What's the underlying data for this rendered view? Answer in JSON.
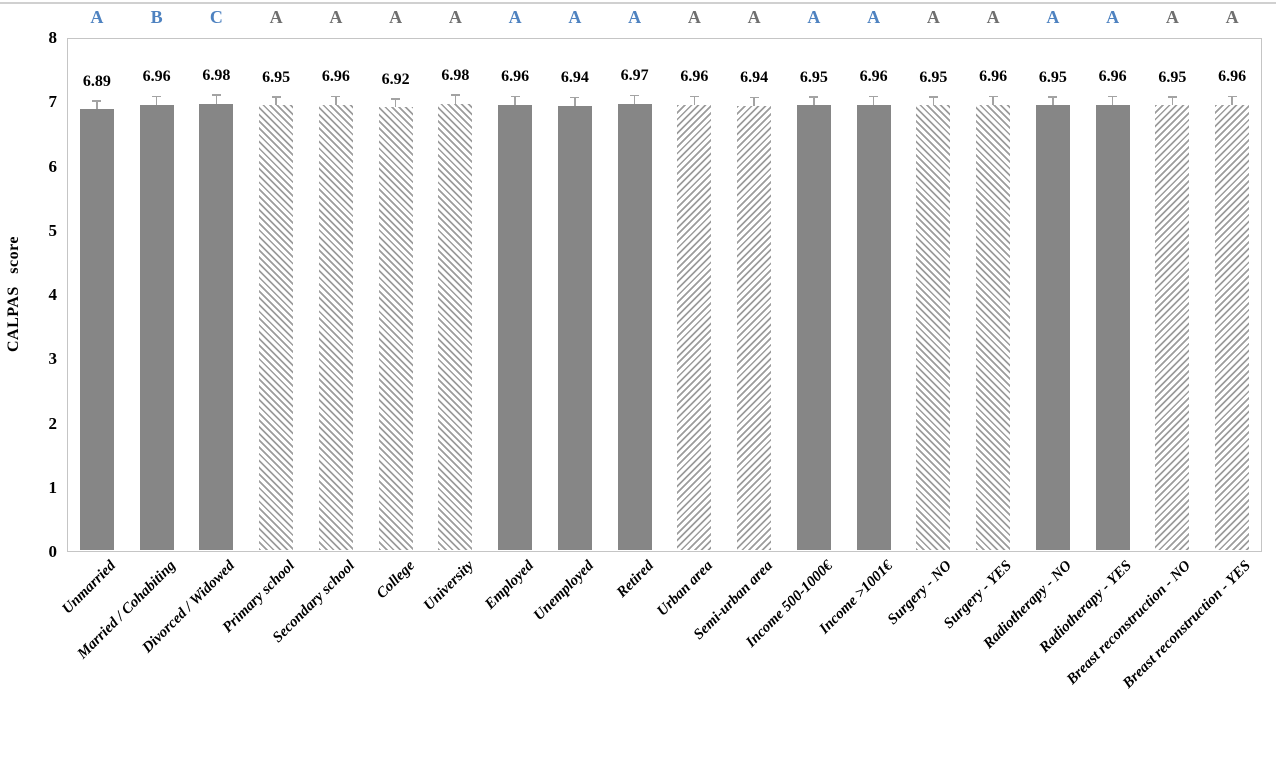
{
  "chart_data": {
    "type": "bar",
    "title": "",
    "xlabel": "",
    "ylabel": "CALPAS score",
    "ylim": [
      0,
      8
    ],
    "yticks": [
      0,
      1,
      2,
      3,
      4,
      5,
      6,
      7,
      8
    ],
    "grid": false,
    "legend": "none",
    "categories": [
      "Unmarried",
      "Married / Cohabiting",
      "Divorced / Widowed",
      "Primary school",
      "Secondary school",
      "College",
      "University",
      "Employed",
      "Unemployed",
      "Retired",
      "Urban area",
      "Semi-urban area",
      "Income 500-1000€",
      "Income >1001€",
      "Surgery - NO",
      "Surgery - YES",
      "Radiotherapy - NO",
      "Radiotherapy - YES",
      "Breast reconstruction - NO",
      "Breast reconstruction - YES"
    ],
    "values": [
      6.89,
      6.96,
      6.98,
      6.95,
      6.96,
      6.92,
      6.98,
      6.96,
      6.94,
      6.97,
      6.96,
      6.94,
      6.95,
      6.96,
      6.95,
      6.96,
      6.95,
      6.96,
      6.95,
      6.96
    ],
    "error_plus": 0.12,
    "bar_styles": [
      "solid",
      "solid",
      "solid",
      "hatch-diagonal-down",
      "hatch-diagonal-down",
      "hatch-diagonal-down",
      "hatch-diagonal-down",
      "solid",
      "solid",
      "solid",
      "hatch-diagonal-up",
      "hatch-diagonal-up",
      "solid",
      "solid",
      "hatch-diagonal-down",
      "hatch-diagonal-down",
      "solid",
      "solid",
      "hatch-diagonal-up",
      "hatch-diagonal-up"
    ],
    "significance_letters": [
      {
        "text": "A",
        "tone": "blue"
      },
      {
        "text": "B",
        "tone": "blue"
      },
      {
        "text": "C",
        "tone": "blue"
      },
      {
        "text": "A",
        "tone": "gray"
      },
      {
        "text": "A",
        "tone": "gray"
      },
      {
        "text": "A",
        "tone": "gray"
      },
      {
        "text": "A",
        "tone": "gray"
      },
      {
        "text": "A",
        "tone": "blue"
      },
      {
        "text": "A",
        "tone": "blue"
      },
      {
        "text": "A",
        "tone": "blue"
      },
      {
        "text": "A",
        "tone": "gray"
      },
      {
        "text": "A",
        "tone": "gray"
      },
      {
        "text": "A",
        "tone": "blue"
      },
      {
        "text": "A",
        "tone": "blue"
      },
      {
        "text": "A",
        "tone": "gray"
      },
      {
        "text": "A",
        "tone": "gray"
      },
      {
        "text": "A",
        "tone": "blue"
      },
      {
        "text": "A",
        "tone": "blue"
      },
      {
        "text": "A",
        "tone": "gray"
      },
      {
        "text": "A",
        "tone": "gray"
      }
    ],
    "colors": {
      "solid_bar": "#868686",
      "hatch_stripe": "#9c9c9c",
      "hatch_background": "#ffffff",
      "letter_blue": "#4e82c0",
      "letter_gray": "#6f6f6f",
      "error_bar": "#a3a3a3",
      "plot_border": "#c5c5c5",
      "top_rule": "#d0d0d0",
      "text": "#000000"
    }
  }
}
